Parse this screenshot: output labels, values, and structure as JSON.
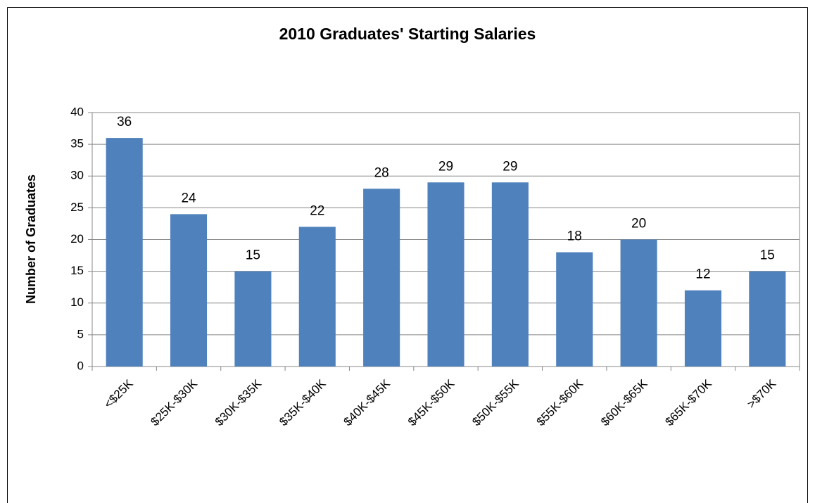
{
  "chart_data": {
    "type": "bar",
    "title": "2010 Graduates' Starting Salaries",
    "y_label": "Number of Graduates",
    "categories": [
      "<$25K",
      "$25K-$30K",
      "$30K-$35K",
      "$35K-$40K",
      "$40K-$45K",
      "$45K-$50K",
      "$50K-$55K",
      "$55K-$60K",
      "$60K-$65K",
      "$65K-$70K",
      ">$70K"
    ],
    "values": [
      36,
      24,
      15,
      22,
      28,
      29,
      29,
      18,
      20,
      12,
      15
    ],
    "color": "#4f81bd",
    "ylim": [
      0,
      40
    ],
    "yticks": [
      0,
      5,
      10,
      15,
      20,
      25,
      30,
      35,
      40
    ],
    "grid": true
  }
}
